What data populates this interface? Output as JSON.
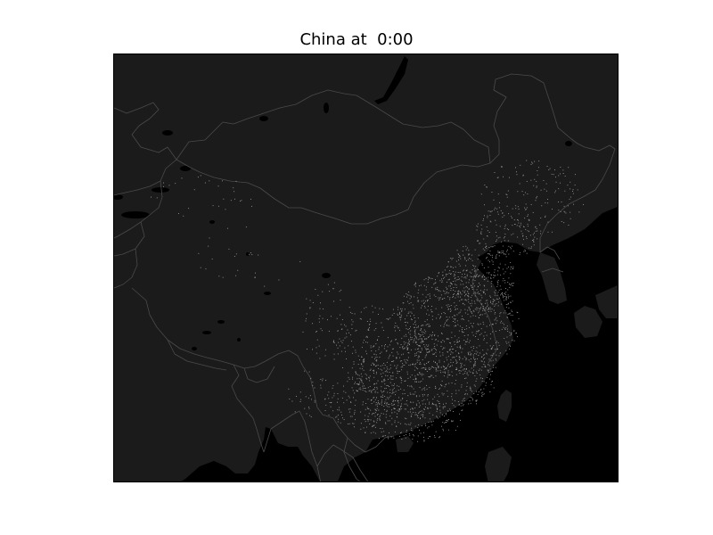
{
  "map": {
    "title": "China at  0:00",
    "colors": {
      "land": "#1c1c1c",
      "ocean": "#000000",
      "borders": "#4a4a4a",
      "lakes": "#000000",
      "points": "#9a9a9a",
      "frame": "#000000",
      "background": "#ffffff"
    }
  }
}
